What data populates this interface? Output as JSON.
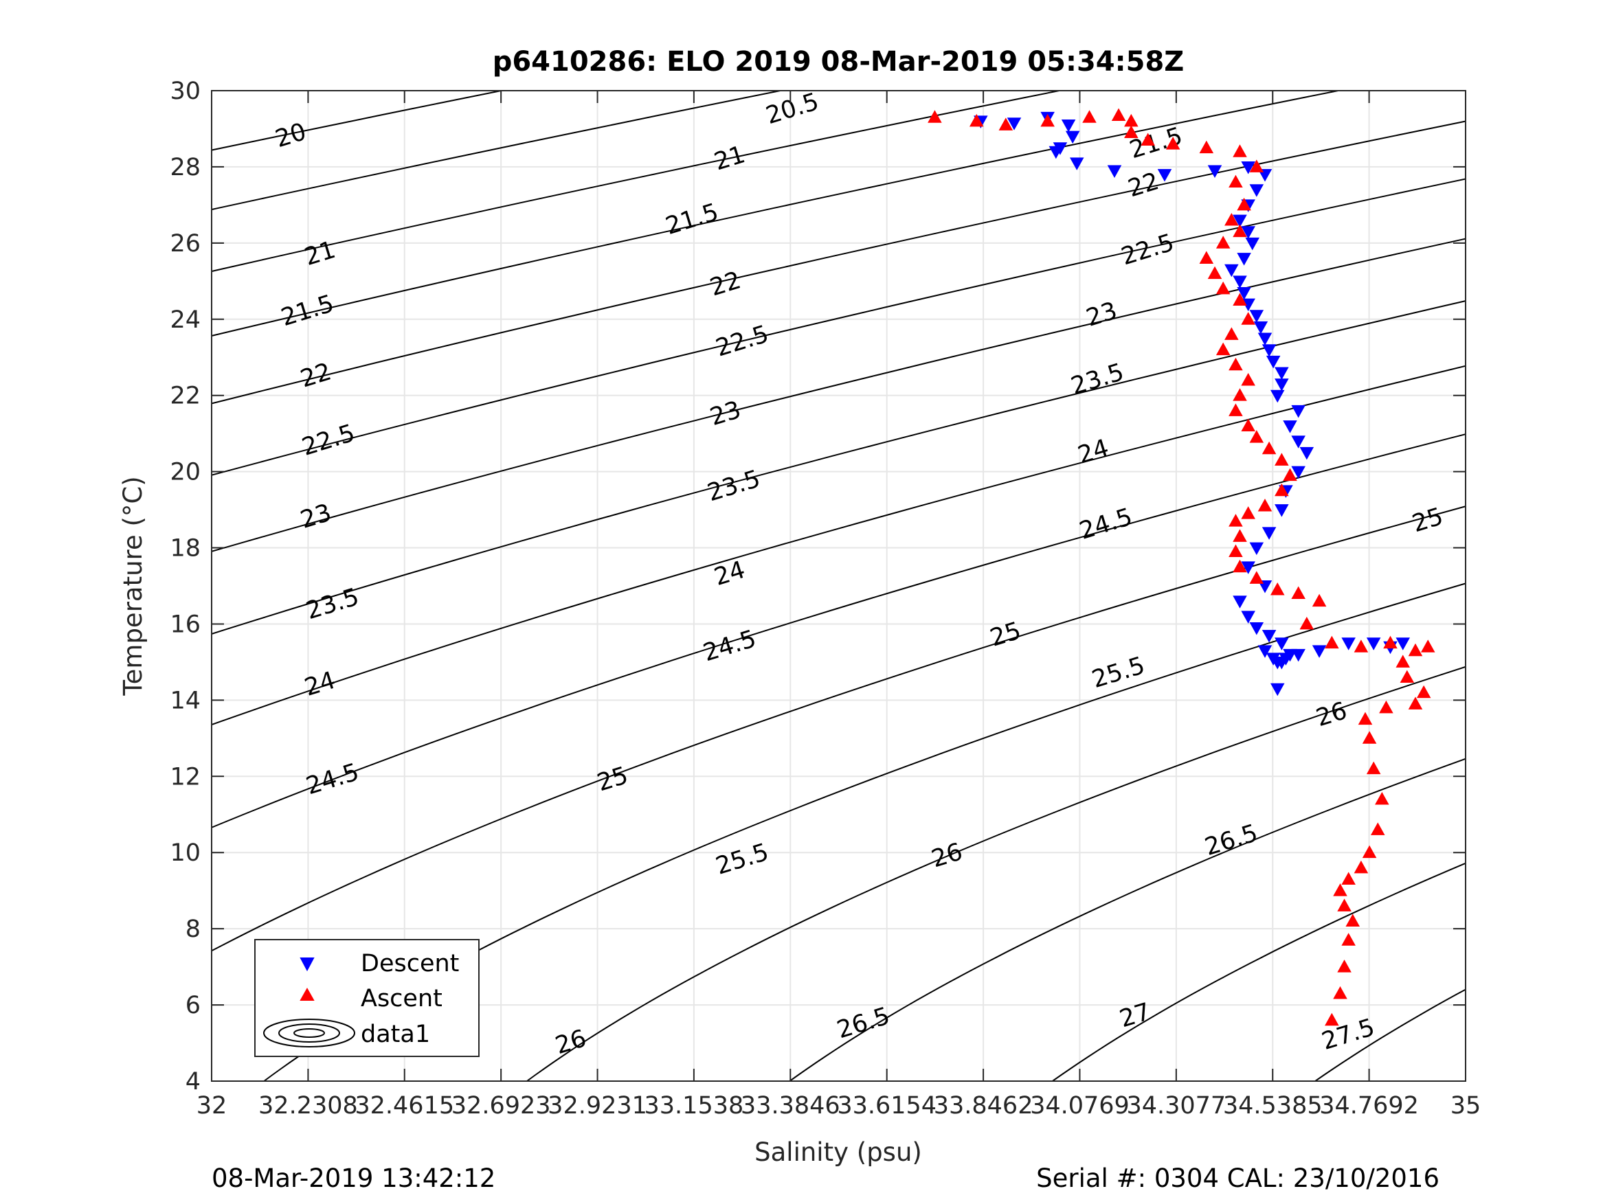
{
  "footer": {
    "timestamp": "08-Mar-2019 13:42:12",
    "serial": "Serial #: 0304  CAL: 23/10/2016"
  },
  "chart_data": {
    "type": "scatter",
    "title": "p6410286: ELO 2019 08-Mar-2019 05:34:58Z",
    "xlabel": "Salinity (psu)",
    "ylabel": "Temperature (°C)",
    "xlim": [
      32,
      35
    ],
    "ylim": [
      4,
      30
    ],
    "xticks": [
      32,
      32.2308,
      32.4615,
      32.6923,
      32.9231,
      33.1538,
      33.3846,
      33.6154,
      33.8462,
      34.0769,
      34.3077,
      34.5385,
      34.7692,
      35
    ],
    "xtick_labels": [
      "32",
      "32.2308",
      "32.4615",
      "32.6923",
      "32.9231",
      "33.1538",
      "33.3846",
      "33.6154",
      "33.8462",
      "34.0769",
      "34.3077",
      "34.5385",
      "34.7692",
      "35"
    ],
    "yticks": [
      4,
      6,
      8,
      10,
      12,
      14,
      16,
      18,
      20,
      22,
      24,
      26,
      28,
      30
    ],
    "ytick_labels": [
      "4",
      "6",
      "8",
      "10",
      "12",
      "14",
      "16",
      "18",
      "20",
      "22",
      "24",
      "26",
      "28",
      "30"
    ],
    "grid": true,
    "legend_position": "bottom-left",
    "contours": {
      "levels": [
        20,
        20.5,
        21,
        21.5,
        22,
        22.5,
        23,
        23.5,
        24,
        24.5,
        25,
        25.5,
        26,
        26.5,
        27,
        27.5
      ],
      "labels": [
        {
          "text": "20",
          "s": 32.19,
          "t": 28.8
        },
        {
          "text": "20.5",
          "s": 33.39,
          "t": 29.5
        },
        {
          "text": "21",
          "s": 33.24,
          "t": 28.2
        },
        {
          "text": "21.5",
          "s": 34.26,
          "t": 28.6
        },
        {
          "text": "21",
          "s": 32.26,
          "t": 25.7
        },
        {
          "text": "21.5",
          "s": 33.15,
          "t": 26.6
        },
        {
          "text": "22",
          "s": 34.23,
          "t": 27.5
        },
        {
          "text": "21.5",
          "s": 32.23,
          "t": 24.2
        },
        {
          "text": "22",
          "s": 33.23,
          "t": 24.9
        },
        {
          "text": "22.5",
          "s": 34.24,
          "t": 25.8
        },
        {
          "text": "22",
          "s": 32.25,
          "t": 22.5
        },
        {
          "text": "22.5",
          "s": 33.27,
          "t": 23.4
        },
        {
          "text": "23",
          "s": 34.13,
          "t": 24.1
        },
        {
          "text": "22.5",
          "s": 32.28,
          "t": 20.8
        },
        {
          "text": "23",
          "s": 33.23,
          "t": 21.5
        },
        {
          "text": "23.5",
          "s": 34.12,
          "t": 22.4
        },
        {
          "text": "23",
          "s": 32.25,
          "t": 18.8
        },
        {
          "text": "23.5",
          "s": 33.25,
          "t": 19.6
        },
        {
          "text": "24",
          "s": 34.11,
          "t": 20.5
        },
        {
          "text": "23.5",
          "s": 32.29,
          "t": 16.5
        },
        {
          "text": "24",
          "s": 33.24,
          "t": 17.3
        },
        {
          "text": "24.5",
          "s": 34.14,
          "t": 18.6
        },
        {
          "text": "25",
          "s": 34.91,
          "t": 18.7
        },
        {
          "text": "24",
          "s": 32.26,
          "t": 14.4
        },
        {
          "text": "24.5",
          "s": 33.24,
          "t": 15.4
        },
        {
          "text": "25",
          "s": 33.9,
          "t": 15.7
        },
        {
          "text": "25.5",
          "s": 34.17,
          "t": 14.7
        },
        {
          "text": "26",
          "s": 34.68,
          "t": 13.6
        },
        {
          "text": "24.5",
          "s": 32.29,
          "t": 11.9
        },
        {
          "text": "25",
          "s": 32.96,
          "t": 11.9
        },
        {
          "text": "25.5",
          "s": 33.27,
          "t": 9.8
        },
        {
          "text": "26",
          "s": 33.76,
          "t": 9.9
        },
        {
          "text": "26.5",
          "s": 34.44,
          "t": 10.3
        },
        {
          "text": "25.5",
          "s": 32.39,
          "t": 5.7
        },
        {
          "text": "26",
          "s": 32.86,
          "t": 5.0
        },
        {
          "text": "26.5",
          "s": 33.56,
          "t": 5.5
        },
        {
          "text": "27",
          "s": 34.21,
          "t": 5.7
        },
        {
          "text": "27.5",
          "s": 34.72,
          "t": 5.2
        }
      ]
    },
    "series": [
      {
        "name": "Descent",
        "marker": "triangle-down",
        "color": "#0000ff",
        "salinity": [
          33.84,
          33.92,
          34.0,
          34.05,
          34.06,
          34.03,
          34.02,
          34.07,
          34.16,
          34.28,
          34.4,
          34.48,
          34.52,
          34.5,
          34.48,
          34.46,
          34.48,
          34.49,
          34.47,
          34.44,
          34.46,
          34.47,
          34.48,
          34.5,
          34.51,
          34.52,
          34.53,
          34.54,
          34.56,
          34.56,
          34.55,
          34.6,
          34.58,
          34.6,
          34.62,
          34.6,
          34.57,
          34.56,
          34.53,
          34.5,
          34.48,
          34.52,
          34.46,
          34.48,
          34.5,
          34.53,
          34.56,
          34.58,
          34.56,
          34.54,
          34.52,
          34.55,
          34.57,
          34.6,
          34.65,
          34.72,
          34.78,
          34.82,
          34.85,
          34.55
        ],
        "temperature": [
          29.2,
          29.15,
          29.3,
          29.1,
          28.8,
          28.5,
          28.4,
          28.1,
          27.9,
          27.8,
          27.9,
          28.0,
          27.8,
          27.4,
          27.0,
          26.6,
          26.3,
          26.0,
          25.6,
          25.3,
          25.0,
          24.7,
          24.4,
          24.1,
          23.8,
          23.5,
          23.2,
          22.9,
          22.6,
          22.3,
          22.0,
          21.6,
          21.2,
          20.8,
          20.5,
          20.0,
          19.5,
          19.0,
          18.4,
          18.0,
          17.5,
          17.0,
          16.6,
          16.2,
          15.9,
          15.7,
          15.5,
          15.2,
          15.0,
          15.1,
          15.3,
          15.0,
          15.1,
          15.2,
          15.3,
          15.5,
          15.5,
          15.4,
          15.5,
          14.3
        ]
      },
      {
        "name": "Ascent",
        "marker": "triangle-up",
        "color": "#ff0000",
        "salinity": [
          33.73,
          33.83,
          33.9,
          34.0,
          34.1,
          34.17,
          34.2,
          34.2,
          34.24,
          34.3,
          34.38,
          34.46,
          34.5,
          34.45,
          34.47,
          34.44,
          34.46,
          34.42,
          34.38,
          34.4,
          34.42,
          34.46,
          34.48,
          34.44,
          34.42,
          34.45,
          34.48,
          34.46,
          34.45,
          34.48,
          34.5,
          34.53,
          34.56,
          34.58,
          34.56,
          34.52,
          34.48,
          34.45,
          34.46,
          34.45,
          34.46,
          34.5,
          34.55,
          34.6,
          34.65,
          34.62,
          34.68,
          34.75,
          34.82,
          34.88,
          34.91,
          34.85,
          34.86,
          34.9,
          34.88,
          34.81,
          34.76,
          34.77,
          34.78,
          34.8,
          34.79,
          34.77,
          34.75,
          34.72,
          34.7,
          34.71,
          34.73,
          34.72,
          34.71,
          34.7,
          34.68
        ],
        "temperature": [
          29.3,
          29.2,
          29.1,
          29.2,
          29.3,
          29.35,
          29.2,
          28.9,
          28.7,
          28.6,
          28.5,
          28.4,
          28.0,
          27.6,
          27.0,
          26.6,
          26.3,
          26.0,
          25.6,
          25.2,
          24.8,
          24.5,
          24.0,
          23.6,
          23.2,
          22.8,
          22.4,
          22.0,
          21.6,
          21.2,
          20.9,
          20.6,
          20.3,
          19.9,
          19.5,
          19.1,
          18.9,
          18.7,
          18.3,
          17.9,
          17.5,
          17.2,
          16.9,
          16.8,
          16.6,
          16.0,
          15.5,
          15.4,
          15.5,
          15.3,
          15.4,
          15.0,
          14.6,
          14.2,
          13.9,
          13.8,
          13.5,
          13.0,
          12.2,
          11.4,
          10.6,
          10.0,
          9.6,
          9.3,
          9.0,
          8.6,
          8.2,
          7.7,
          7.0,
          6.3,
          5.6
        ]
      },
      {
        "name": "data1"
      }
    ]
  }
}
